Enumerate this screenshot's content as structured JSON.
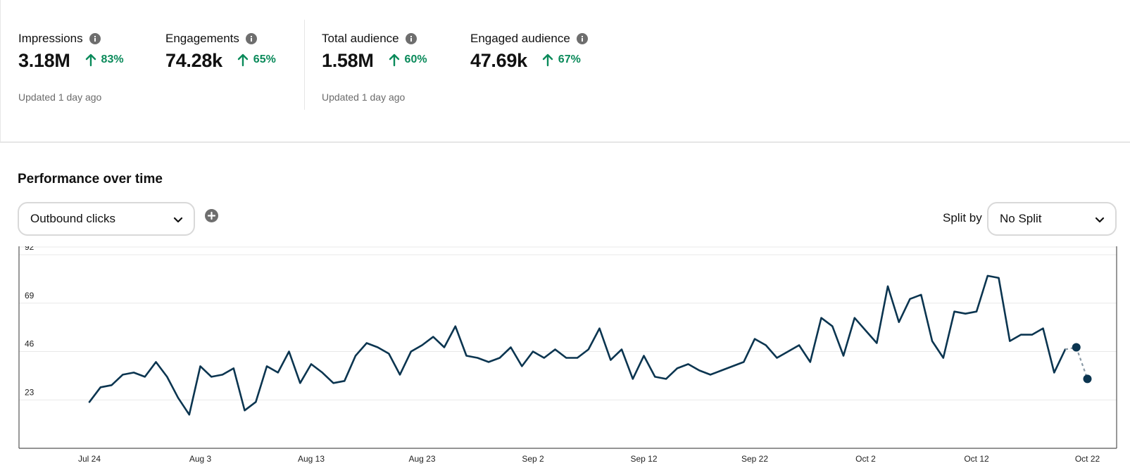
{
  "metrics_group_1": {
    "impressions": {
      "label": "Impressions",
      "value": "3.18M",
      "change": "83%"
    },
    "engagements": {
      "label": "Engagements",
      "value": "74.28k",
      "change": "65%"
    },
    "updated": "Updated 1 day ago"
  },
  "metrics_group_2": {
    "total_audience": {
      "label": "Total audience",
      "value": "1.58M",
      "change": "60%"
    },
    "engaged_audience": {
      "label": "Engaged audience",
      "value": "47.69k",
      "change": "67%"
    },
    "updated": "Updated 1 day ago"
  },
  "performance": {
    "title": "Performance over time",
    "metric_select": "Outbound clicks",
    "split_label": "Split by",
    "split_select": "No Split"
  },
  "colors": {
    "line": "#0b3550",
    "trend_up": "#0a8a5a",
    "grid": "#e8e8e8"
  },
  "icons": {
    "info": "info-icon",
    "trend": "arrow-up-icon",
    "add": "plus-circle-icon",
    "dropdown": "chevron-down-icon"
  },
  "chart_data": {
    "type": "line",
    "yticks": [
      23,
      46,
      69,
      92
    ],
    "ylim": [
      0,
      92
    ],
    "xticks": [
      "Jul 24",
      "Aug 3",
      "Aug 13",
      "Aug 23",
      "Sep 2",
      "Sep 12",
      "Sep 22",
      "Oct 2",
      "Oct 12",
      "Oct 22"
    ],
    "x_start": "Jul 24",
    "grid": true,
    "series": [
      {
        "values": [
          22,
          29,
          30,
          35,
          36,
          34,
          41,
          34,
          24,
          16,
          39,
          34,
          35,
          38,
          18,
          22,
          39,
          36,
          46,
          31,
          40,
          36,
          31,
          32,
          44,
          50,
          48,
          45,
          35,
          46,
          49,
          53,
          48,
          58,
          44,
          43,
          41,
          43,
          48,
          39,
          46,
          43,
          47,
          43,
          43,
          47,
          57,
          42,
          47,
          33,
          44,
          34,
          33,
          38,
          40,
          37,
          35,
          37,
          39,
          41,
          52,
          49,
          43,
          46,
          49,
          41,
          62,
          58,
          44,
          62,
          56,
          50,
          77,
          60,
          71,
          73,
          51,
          43,
          65,
          64,
          65,
          82,
          81,
          51,
          54,
          54,
          57,
          36,
          47
        ]
      },
      {
        "values": [
          48,
          33
        ]
      }
    ]
  }
}
